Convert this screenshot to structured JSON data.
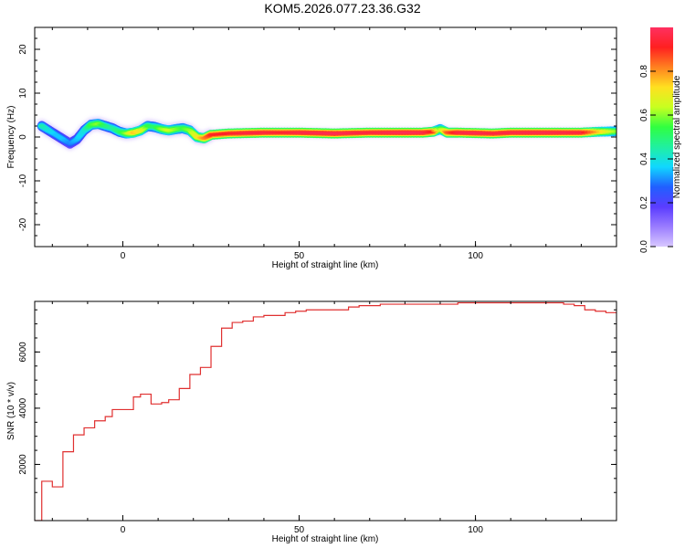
{
  "title": "KOM5.2026.077.23.36.G32",
  "colors": {
    "snr_line": "#e03030",
    "ridge_core": "#e02040",
    "axis": "#000000",
    "colormap": [
      "#d8c8ff",
      "#9a7cff",
      "#5a3cff",
      "#2060ff",
      "#10d8ff",
      "#20f0a0",
      "#30ff40",
      "#c8ff20",
      "#ffe020",
      "#ff8020",
      "#ff2020",
      "#ff3060"
    ]
  },
  "chart_data": [
    {
      "type": "heatmap",
      "title": "KOM5.2026.077.23.36.G32",
      "xlabel": "Height of straight line (km)",
      "ylabel": "Frequency (Hz)",
      "xlim": [
        -25,
        140
      ],
      "ylim": [
        -25,
        25
      ],
      "x_ticks": [
        "0",
        "50",
        "100"
      ],
      "y_ticks": [
        "20",
        "10",
        "0",
        "-10",
        "-20"
      ],
      "colorbar": {
        "label": "Normalized spectral amplitude",
        "range": [
          0,
          1
        ],
        "ticks": [
          "0.0",
          "0.2",
          "0.4",
          "0.6",
          "0.8"
        ]
      },
      "ridge_frequency_hz": {
        "x": [
          -23,
          -21,
          -19,
          -17,
          -15,
          -13,
          -11,
          -9,
          -7,
          -5,
          -3,
          -1,
          1,
          3,
          5,
          7,
          9,
          11,
          13,
          15,
          17,
          19,
          21,
          23,
          25,
          30,
          35,
          40,
          45,
          50,
          55,
          60,
          65,
          70,
          75,
          80,
          85,
          88,
          90,
          92,
          95,
          100,
          105,
          110,
          115,
          120,
          125,
          130,
          135,
          140
        ],
        "y": [
          2.5,
          1.5,
          0.5,
          -0.5,
          -1.5,
          -0.5,
          1.5,
          2.8,
          3,
          2.5,
          2,
          1.2,
          0.8,
          1,
          1.5,
          2.5,
          2.3,
          1.8,
          1.5,
          1.8,
          2,
          1.5,
          0,
          -0.3,
          0.5,
          0.8,
          0.9,
          1,
          1,
          1,
          0.9,
          0.8,
          0.9,
          1,
          1,
          1,
          1,
          1.2,
          1.8,
          1,
          1,
          0.9,
          0.8,
          1,
          1,
          1,
          1,
          1,
          1.2,
          1.3
        ],
        "amplitude": [
          0.45,
          0.4,
          0.35,
          0.35,
          0.3,
          0.35,
          0.4,
          0.55,
          0.6,
          0.5,
          0.45,
          0.5,
          0.6,
          0.75,
          0.7,
          0.55,
          0.5,
          0.6,
          0.65,
          0.6,
          0.55,
          0.6,
          0.7,
          0.8,
          0.9,
          0.92,
          0.95,
          0.95,
          0.93,
          0.96,
          0.97,
          0.98,
          0.96,
          0.95,
          0.97,
          0.98,
          0.97,
          0.9,
          0.6,
          0.85,
          0.95,
          0.97,
          0.95,
          0.96,
          0.97,
          0.97,
          0.96,
          0.95,
          0.75,
          0.6
        ]
      }
    },
    {
      "type": "line",
      "xlabel": "Height of straight line (km)",
      "ylabel": "SNR (10 * v/v)",
      "xlim": [
        -25,
        140
      ],
      "ylim": [
        0,
        7800
      ],
      "x_ticks": [
        "0",
        "50",
        "100"
      ],
      "y_ticks": [
        "2000",
        "4000",
        "6000"
      ],
      "step": true,
      "x": [
        -25,
        -23,
        -20,
        -17,
        -14,
        -11,
        -8,
        -5,
        -3,
        0,
        3,
        5,
        8,
        11,
        13,
        16,
        19,
        22,
        25,
        28,
        31,
        34,
        37,
        40,
        43,
        46,
        49,
        52,
        55,
        58,
        61,
        64,
        67,
        70,
        73,
        76,
        79,
        82,
        85,
        88,
        90,
        92,
        95,
        98,
        101,
        104,
        107,
        110,
        113,
        116,
        119,
        122,
        125,
        128,
        131,
        134,
        137,
        140
      ],
      "y": [
        0,
        1400,
        1200,
        2450,
        3050,
        3300,
        3550,
        3700,
        3950,
        3950,
        4400,
        4500,
        4150,
        4200,
        4300,
        4700,
        5200,
        5450,
        6200,
        6850,
        7050,
        7100,
        7250,
        7300,
        7300,
        7400,
        7450,
        7500,
        7500,
        7500,
        7500,
        7600,
        7650,
        7650,
        7700,
        7700,
        7700,
        7700,
        7700,
        7700,
        7700,
        7700,
        7750,
        7750,
        7750,
        7750,
        7750,
        7750,
        7750,
        7750,
        7750,
        7750,
        7700,
        7650,
        7500,
        7450,
        7400,
        7400
      ]
    }
  ]
}
